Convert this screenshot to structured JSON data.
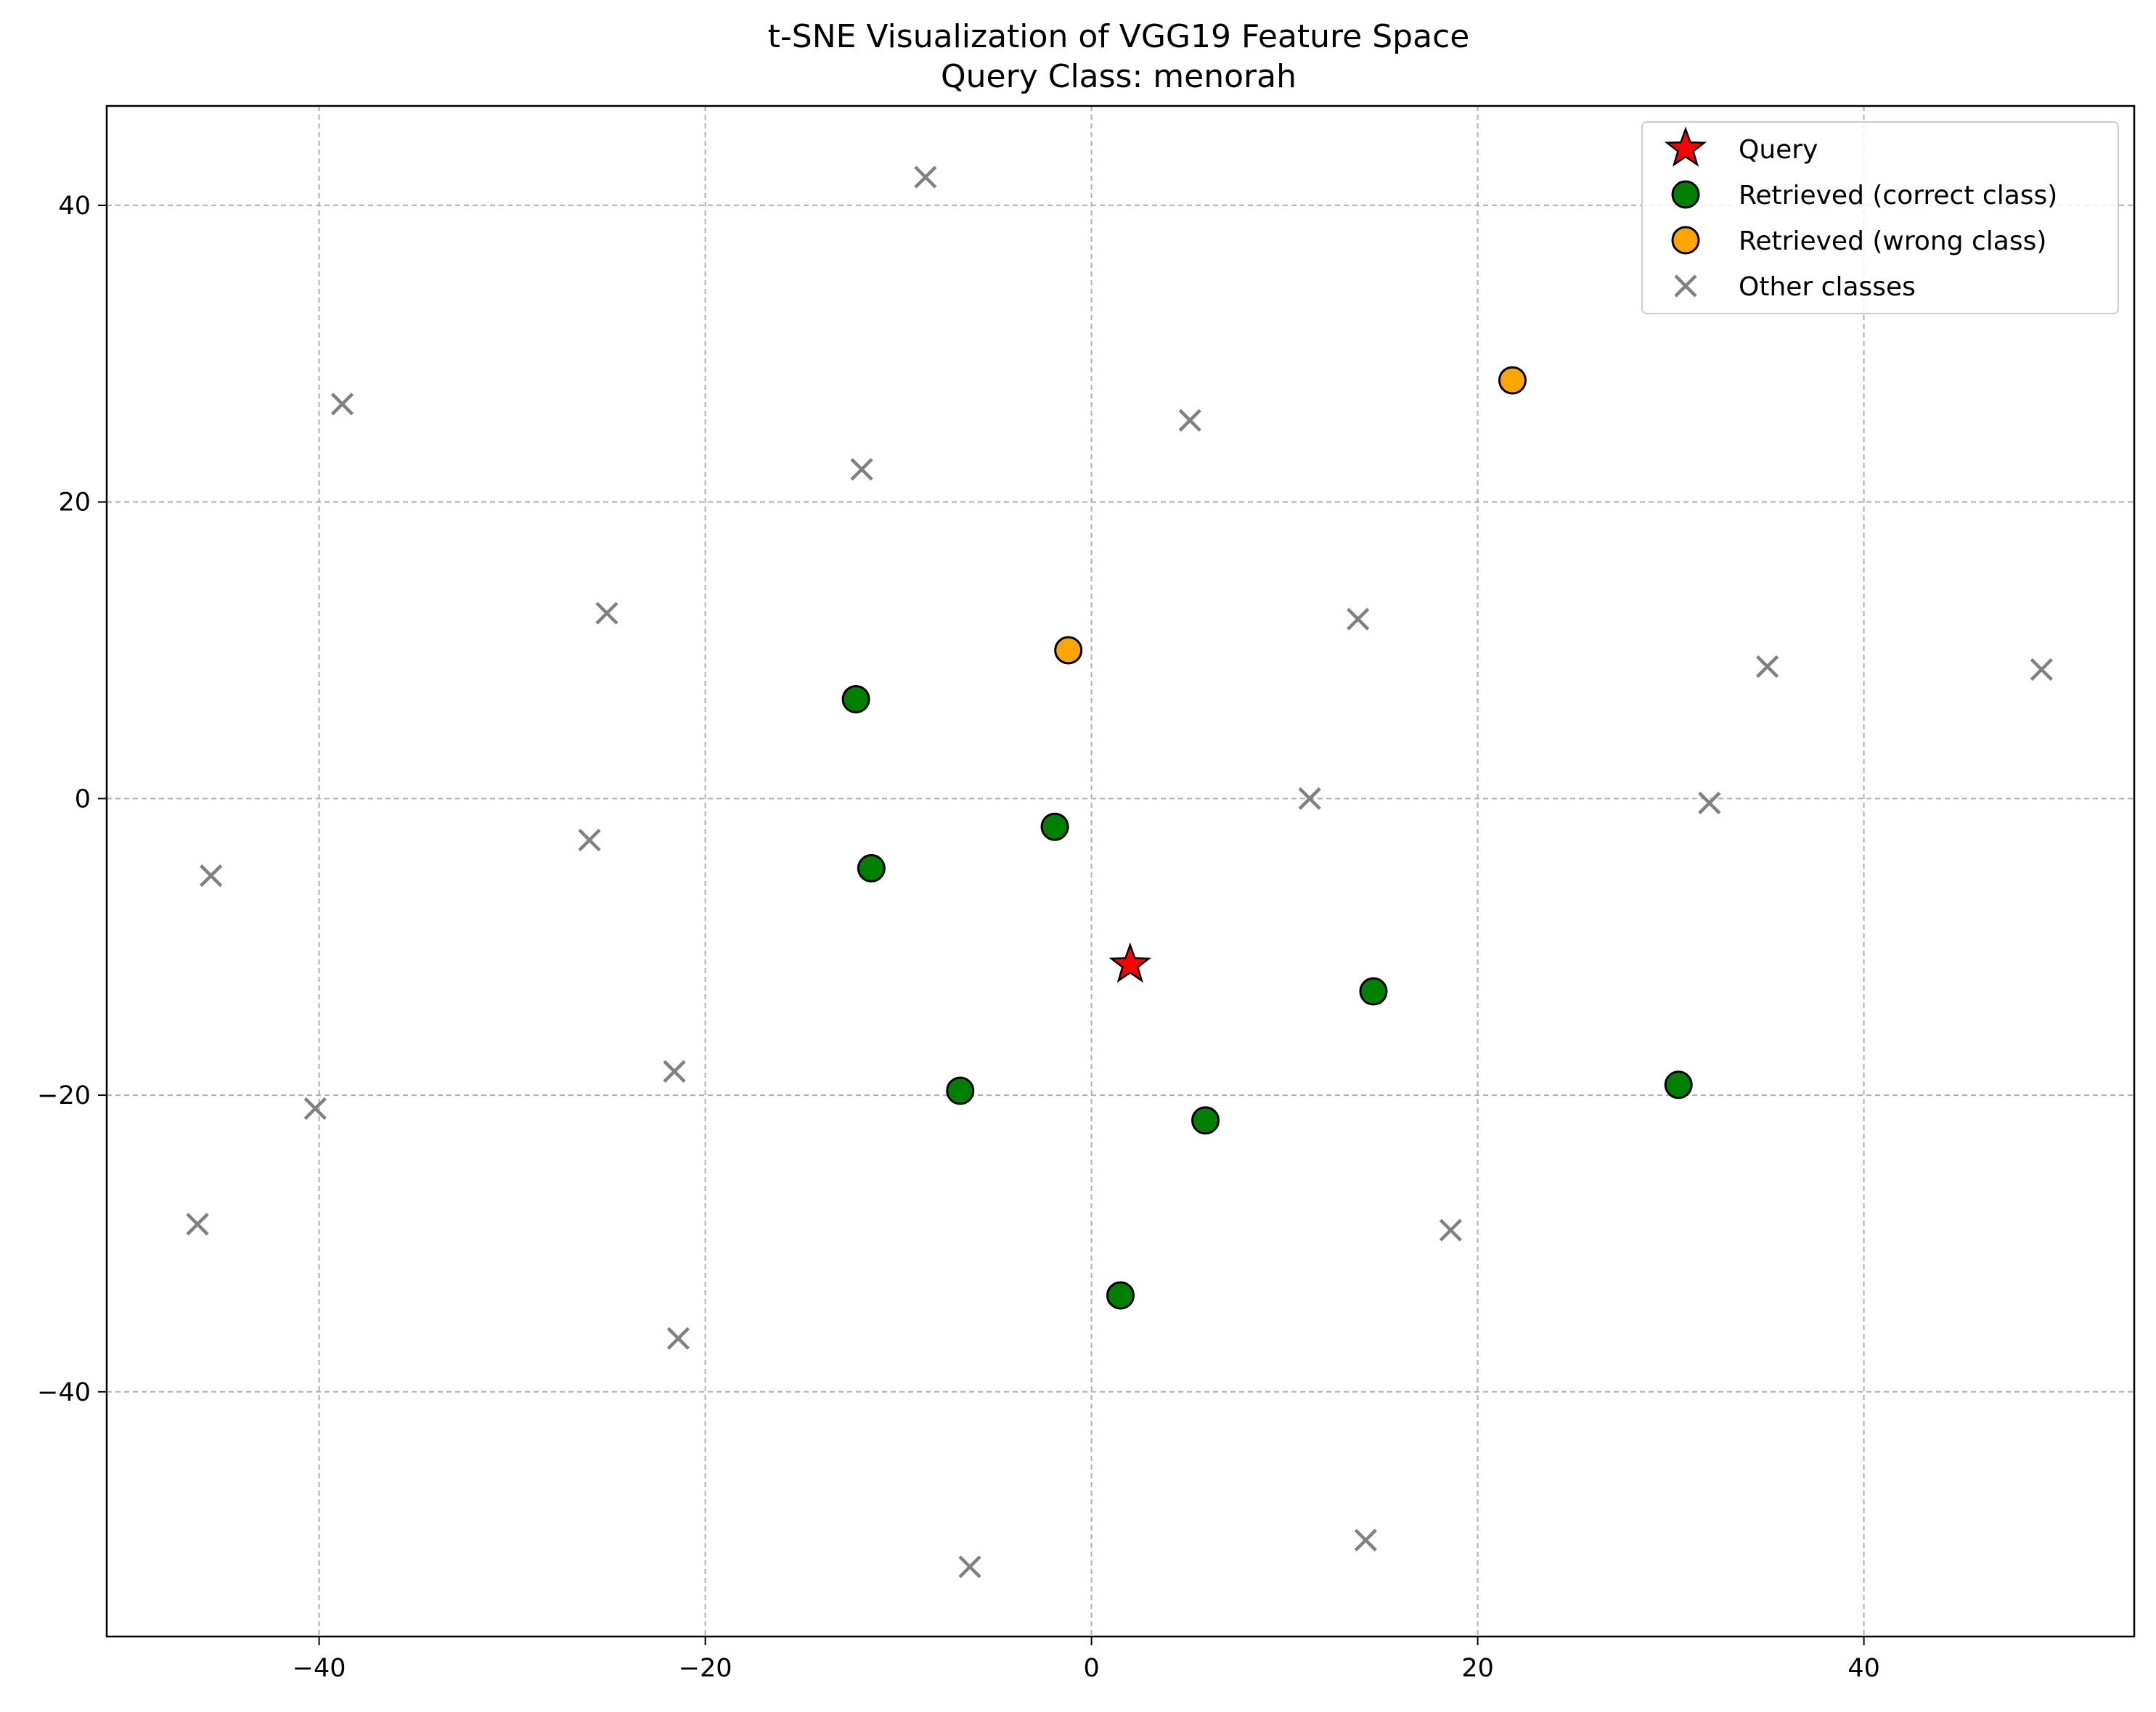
{
  "chart_data": {
    "type": "scatter",
    "title": "t-SNE Visualization of VGG19 Feature Space",
    "subtitle": "Query Class: menorah",
    "xlabel": "",
    "ylabel": "",
    "xlim": [
      -51,
      54
    ],
    "ylim": [
      -56.5,
      46.7
    ],
    "x_ticks": [
      -40,
      -20,
      0,
      20,
      40
    ],
    "y_ticks": [
      -40,
      -20,
      0,
      20,
      40
    ],
    "x_tick_labels": [
      "−40",
      "−20",
      "0",
      "20",
      "40"
    ],
    "y_tick_labels": [
      "−40",
      "−20",
      "0",
      "20",
      "40"
    ],
    "grid": true,
    "legend_position": "top-right",
    "series": [
      {
        "name": "Query",
        "marker": "star",
        "color": "#ff0000",
        "points": [
          [
            2.0,
            -11.2
          ]
        ]
      },
      {
        "name": "Retrieved (correct class)",
        "marker": "circle",
        "color": "#008000",
        "points": [
          [
            -12.2,
            6.7
          ],
          [
            -1.9,
            -1.9
          ],
          [
            -11.4,
            -4.7
          ],
          [
            14.6,
            -13.0
          ],
          [
            -6.8,
            -19.7
          ],
          [
            5.9,
            -21.7
          ],
          [
            30.4,
            -19.3
          ],
          [
            1.5,
            -33.5
          ]
        ]
      },
      {
        "name": "Retrieved (wrong class)",
        "marker": "circle",
        "color": "#ffa500",
        "points": [
          [
            21.8,
            28.2
          ],
          [
            -1.2,
            10.0
          ]
        ]
      },
      {
        "name": "Other classes",
        "marker": "x",
        "color": "#808080",
        "points": [
          [
            -8.6,
            41.9
          ],
          [
            -38.8,
            26.6
          ],
          [
            5.1,
            25.5
          ],
          [
            -11.9,
            22.2
          ],
          [
            -25.1,
            12.5
          ],
          [
            13.8,
            12.1
          ],
          [
            35.0,
            8.9
          ],
          [
            49.2,
            8.7
          ],
          [
            11.3,
            0.0
          ],
          [
            32.0,
            -0.3
          ],
          [
            -26.0,
            -2.8
          ],
          [
            -45.6,
            -5.2
          ],
          [
            -21.6,
            -18.4
          ],
          [
            -40.2,
            -20.9
          ],
          [
            -46.3,
            -28.7
          ],
          [
            18.6,
            -29.1
          ],
          [
            -21.4,
            -36.4
          ],
          [
            14.2,
            -50.0
          ],
          [
            -6.3,
            -51.8
          ]
        ]
      }
    ]
  }
}
